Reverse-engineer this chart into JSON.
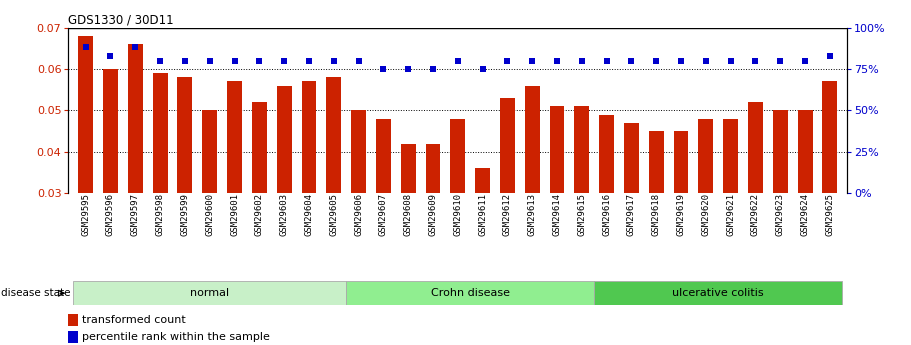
{
  "title": "GDS1330 / 30D11",
  "samples": [
    "GSM29595",
    "GSM29596",
    "GSM29597",
    "GSM29598",
    "GSM29599",
    "GSM29600",
    "GSM29601",
    "GSM29602",
    "GSM29603",
    "GSM29604",
    "GSM29605",
    "GSM29606",
    "GSM29607",
    "GSM29608",
    "GSM29609",
    "GSM29610",
    "GSM29611",
    "GSM29612",
    "GSM29613",
    "GSM29614",
    "GSM29615",
    "GSM29616",
    "GSM29617",
    "GSM29618",
    "GSM29619",
    "GSM29620",
    "GSM29621",
    "GSM29622",
    "GSM29623",
    "GSM29624",
    "GSM29625"
  ],
  "red_values": [
    0.068,
    0.06,
    0.066,
    0.059,
    0.058,
    0.05,
    0.057,
    0.052,
    0.056,
    0.057,
    0.058,
    0.05,
    0.048,
    0.042,
    0.042,
    0.048,
    0.036,
    0.053,
    0.056,
    0.051,
    0.051,
    0.049,
    0.047,
    0.045,
    0.045,
    0.048,
    0.048,
    0.052,
    0.05,
    0.05,
    0.057
  ],
  "blue_values": [
    88,
    83,
    88,
    80,
    80,
    80,
    80,
    80,
    80,
    80,
    80,
    80,
    75,
    75,
    75,
    80,
    75,
    80,
    80,
    80,
    80,
    80,
    80,
    80,
    80,
    80,
    80,
    80,
    80,
    80,
    83
  ],
  "groups": [
    {
      "label": "normal",
      "start": 0,
      "end": 10,
      "color": "#c8f0c8"
    },
    {
      "label": "Crohn disease",
      "start": 11,
      "end": 20,
      "color": "#90ee90"
    },
    {
      "label": "ulcerative colitis",
      "start": 21,
      "end": 30,
      "color": "#50c850"
    }
  ],
  "ylim_left": [
    0.03,
    0.07
  ],
  "ylim_right": [
    0,
    100
  ],
  "yticks_left": [
    0.03,
    0.04,
    0.05,
    0.06,
    0.07
  ],
  "yticks_right": [
    0,
    25,
    50,
    75,
    100
  ],
  "bar_color": "#cc2200",
  "dot_color": "#0000cc",
  "bg_color": "#ffffff",
  "disease_state_label": "disease state",
  "legend_items": [
    "transformed count",
    "percentile rank within the sample"
  ],
  "bar_width": 0.6
}
